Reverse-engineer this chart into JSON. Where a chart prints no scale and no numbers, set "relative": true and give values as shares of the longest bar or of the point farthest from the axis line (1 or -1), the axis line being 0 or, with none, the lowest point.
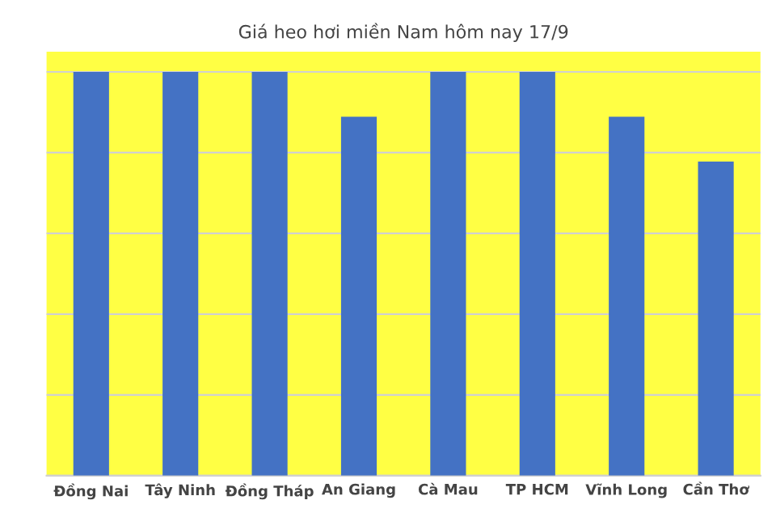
{
  "chart_data": {
    "type": "bar",
    "title": "Giá heo hơi miền Nam hôm nay 17/9",
    "categories": [
      "Đồng Nai",
      "Tây Ninh",
      "Đồng Tháp",
      "An Giang",
      "Cà Mau",
      "TP HCM",
      "Vĩnh Long",
      "Cần Thơ"
    ],
    "values": [
      1,
      1,
      1,
      0.889,
      1,
      1,
      0.889,
      0.778
    ],
    "color": "#4472c4",
    "relative": true,
    "grid": "y"
  }
}
